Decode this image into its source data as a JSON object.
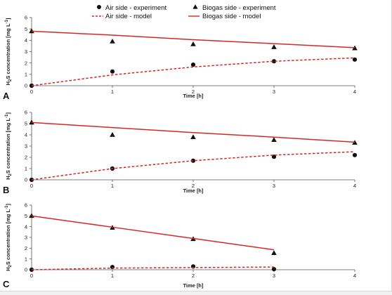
{
  "legend": [
    {
      "label": "Air side - experiment",
      "marker": "circle",
      "color": "#111111"
    },
    {
      "label": "Biogas side - experiment",
      "marker": "triangle",
      "color": "#111111"
    },
    {
      "label": "Air side - model",
      "line": "dashed",
      "color": "#d62728"
    },
    {
      "label": "Biogas side - model",
      "line": "solid",
      "color": "#d62728"
    }
  ],
  "colors": {
    "model": "#d62728",
    "marker": "#111111"
  },
  "chart_data": [
    {
      "panel": "A",
      "type": "line",
      "xlabel": "Time [h]",
      "ylabel": "H2S concentration [mg L-1]",
      "xlim": [
        0,
        4
      ],
      "ylim": [
        0,
        6
      ],
      "xticks": [
        "0",
        "1",
        "2",
        "3",
        "4"
      ],
      "yticks": [
        "0",
        "1",
        "2",
        "3",
        "4",
        "5",
        "6"
      ],
      "grid": false,
      "series": [
        {
          "name": "Air side - experiment",
          "x": [
            0,
            1,
            2,
            3,
            4
          ],
          "y": [
            0.0,
            1.25,
            1.85,
            2.15,
            2.3
          ]
        },
        {
          "name": "Biogas side - experiment",
          "x": [
            0,
            1,
            2,
            3,
            4
          ],
          "y": [
            4.8,
            3.9,
            3.65,
            3.4,
            3.3
          ]
        },
        {
          "name": "Air side - model",
          "x": [
            0,
            1,
            2,
            3,
            4
          ],
          "y": [
            0.0,
            0.95,
            1.65,
            2.15,
            2.45
          ]
        },
        {
          "name": "Biogas side - model",
          "x": [
            0,
            1,
            2,
            3,
            4
          ],
          "y": [
            4.8,
            4.45,
            4.05,
            3.7,
            3.35
          ]
        }
      ]
    },
    {
      "panel": "B",
      "type": "line",
      "xlabel": "Time [h]",
      "ylabel": "H2S concentration [mg L-1]",
      "xlim": [
        0,
        4
      ],
      "ylim": [
        0,
        6
      ],
      "xticks": [
        "0",
        "1",
        "2",
        "3",
        "4"
      ],
      "yticks": [
        "0",
        "1",
        "2",
        "3",
        "4",
        "5",
        "6"
      ],
      "grid": false,
      "series": [
        {
          "name": "Air side - experiment",
          "x": [
            0,
            1,
            2,
            3,
            4
          ],
          "y": [
            0.0,
            1.0,
            1.7,
            2.05,
            2.2
          ]
        },
        {
          "name": "Biogas side - experiment",
          "x": [
            0,
            1,
            2,
            3,
            4
          ],
          "y": [
            5.1,
            4.0,
            3.8,
            3.55,
            3.3
          ]
        },
        {
          "name": "Air side - model",
          "x": [
            0,
            1,
            2,
            3,
            4
          ],
          "y": [
            0.0,
            1.0,
            1.7,
            2.2,
            2.5
          ]
        },
        {
          "name": "Biogas side - model",
          "x": [
            0,
            1,
            2,
            3,
            4
          ],
          "y": [
            5.1,
            4.65,
            4.2,
            3.8,
            3.35
          ]
        }
      ]
    },
    {
      "panel": "C",
      "type": "line",
      "xlabel": "Time [h]",
      "ylabel": "H2S concentration [mg L-1]",
      "xlim": [
        0,
        4
      ],
      "ylim": [
        0,
        6
      ],
      "xticks": [
        "0",
        "1",
        "2",
        "3",
        "4"
      ],
      "yticks": [
        "0",
        "1",
        "2",
        "3",
        "4",
        "5",
        "6"
      ],
      "grid": false,
      "series": [
        {
          "name": "Air side - experiment",
          "x": [
            0,
            1,
            2,
            3
          ],
          "y": [
            0.0,
            0.25,
            0.3,
            0.05
          ]
        },
        {
          "name": "Biogas side - experiment",
          "x": [
            0,
            1,
            2,
            3
          ],
          "y": [
            5.0,
            3.9,
            2.85,
            1.55
          ]
        },
        {
          "name": "Air side - model",
          "x": [
            0,
            1,
            2,
            3
          ],
          "y": [
            0.0,
            0.15,
            0.2,
            0.25
          ]
        },
        {
          "name": "Biogas side - model",
          "x": [
            0,
            1,
            2,
            3
          ],
          "y": [
            5.0,
            3.95,
            2.9,
            1.85
          ]
        }
      ]
    }
  ]
}
